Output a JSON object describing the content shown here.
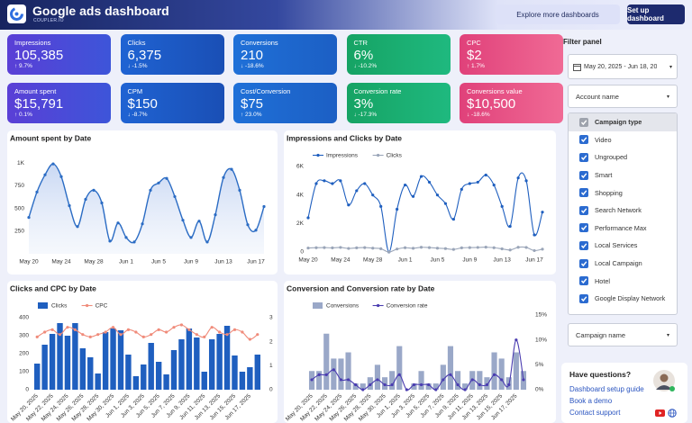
{
  "header": {
    "title": "Google ads dashboard",
    "subtitle": "COUPLER.IO",
    "buttons": [
      "Explore more dashboards",
      "Set up dashboard"
    ]
  },
  "kpis": [
    {
      "label": "Impressions",
      "value": "105,385",
      "delta": "↑ 9.7%"
    },
    {
      "label": "Clicks",
      "value": "6,375",
      "delta": "↓ -1.5%"
    },
    {
      "label": "Conversions",
      "value": "210",
      "delta": "↓ -18.6%"
    },
    {
      "label": "CTR",
      "value": "6%",
      "delta": "↓ -10.2%"
    },
    {
      "label": "CPC",
      "value": "$2",
      "delta": "↑ 1.7%"
    },
    {
      "label": "Amount spent",
      "value": "$15,791",
      "delta": "↑ 0.1%"
    },
    {
      "label": "CPM",
      "value": "$150",
      "delta": "↓ -8.7%"
    },
    {
      "label": "Cost/Conversion",
      "value": "$75",
      "delta": "↑ 23.0%"
    },
    {
      "label": "Conversion rate",
      "value": "3%",
      "delta": "↓ -17.3%"
    },
    {
      "label": "Conversions value",
      "value": "$10,500",
      "delta": "↓ -18.6%"
    }
  ],
  "chart_data": [
    {
      "type": "area",
      "title": "Amount spent by Date",
      "categories": [
        "May 20",
        null,
        null,
        null,
        "May 24",
        null,
        null,
        null,
        "May 28",
        null,
        null,
        null,
        "Jun 1",
        null,
        null,
        null,
        "Jun 5",
        null,
        null,
        null,
        "Jun 9",
        null,
        null,
        null,
        "Jun 13",
        null,
        null,
        null,
        "Jun 17",
        null
      ],
      "values": [
        400,
        680,
        870,
        990,
        850,
        530,
        300,
        600,
        700,
        560,
        140,
        340,
        180,
        130,
        330,
        700,
        780,
        830,
        630,
        370,
        180,
        360,
        130,
        430,
        840,
        930,
        700,
        320,
        260,
        520
      ],
      "color": "#2b6cc4",
      "ylim": [
        0,
        1100
      ],
      "yticks": [
        250,
        500,
        750,
        {
          "value": 1000,
          "label": "1K"
        }
      ]
    },
    {
      "type": "line",
      "title": "Impressions and Clicks by Date",
      "categories": [
        "May 20",
        null,
        null,
        null,
        "May 24",
        null,
        null,
        null,
        "May 28",
        null,
        null,
        null,
        "Jun 1",
        null,
        null,
        null,
        "Jun 5",
        null,
        null,
        null,
        "Jun 9",
        null,
        null,
        null,
        "Jun 13",
        null,
        null,
        null,
        "Jun 17",
        null
      ],
      "series": [
        {
          "name": "Impressions",
          "color": "#1f5fbf",
          "values": [
            2400,
            4800,
            5000,
            4800,
            5000,
            3300,
            4300,
            4800,
            4000,
            3200,
            0,
            3000,
            4700,
            3900,
            5300,
            4900,
            4000,
            3400,
            2300,
            4400,
            4800,
            4900,
            5400,
            4700,
            3200,
            1800,
            5200,
            5000,
            1200,
            2800
          ]
        },
        {
          "name": "Clicks",
          "color": "#9aa5b8",
          "values": [
            280,
            300,
            310,
            290,
            320,
            250,
            290,
            310,
            270,
            230,
            0,
            210,
            300,
            260,
            330,
            310,
            270,
            240,
            180,
            290,
            310,
            320,
            340,
            300,
            220,
            140,
            330,
            320,
            100,
            200
          ]
        }
      ],
      "ylim": [
        0,
        6000
      ],
      "yticks": [
        0,
        {
          "value": 2000,
          "label": "2K"
        },
        {
          "value": 4000,
          "label": "4K"
        },
        {
          "value": 6000,
          "label": "6K"
        }
      ]
    },
    {
      "type": "combo",
      "title": "Clicks and CPC by Date",
      "categories": [
        "May 20, 2025",
        null,
        "May 22, 2025",
        null,
        "May 24, 2025",
        null,
        "May 26, 2025",
        null,
        "May 28, 2025",
        null,
        "May 30, 2025",
        null,
        "Jun 1, 2025",
        null,
        "Jun 3, 2025",
        null,
        "Jun 5, 2025",
        null,
        "Jun 7, 2025",
        null,
        "Jun 9, 2025",
        null,
        "Jun 11, 2025",
        null,
        "Jun 13, 2025",
        null,
        "Jun 15, 2025",
        null,
        "Jun 17, 2025",
        null
      ],
      "series": [
        {
          "name": "Clicks",
          "type": "bar",
          "color": "#1f5fbf",
          "values": [
            145,
            250,
            310,
            370,
            300,
            370,
            230,
            180,
            90,
            320,
            340,
            330,
            195,
            75,
            140,
            260,
            155,
            85,
            220,
            280,
            340,
            290,
            100,
            280,
            310,
            355,
            190,
            100,
            125,
            195
          ]
        },
        {
          "name": "CPC",
          "type": "line",
          "axis": "y2",
          "color": "#f08b7a",
          "values": [
            2.2,
            2.4,
            2.5,
            2.3,
            2.6,
            2.5,
            2.3,
            2.2,
            2.3,
            2.4,
            2.6,
            2.3,
            2.5,
            2.4,
            2.2,
            2.3,
            2.5,
            2.4,
            2.6,
            2.7,
            2.5,
            2.3,
            2.2,
            2.6,
            2.4,
            2.3,
            2.5,
            2.4,
            2.1,
            2.3
          ]
        }
      ],
      "ylim": [
        0,
        400
      ],
      "yticks": [
        0,
        100,
        200,
        300,
        400
      ],
      "y2lim": [
        0,
        3
      ],
      "y2ticks": [
        0,
        1,
        2,
        3
      ]
    },
    {
      "type": "combo",
      "title": "Conversion and Conversion rate by Date",
      "categories": [
        "May 20, 2025",
        null,
        "May 22, 2025",
        null,
        "May 24, 2025",
        null,
        "May 26, 2025",
        null,
        "May 28, 2025",
        null,
        "May 30, 2025",
        null,
        "Jun 1, 2025",
        null,
        "Jun 3, 2025",
        null,
        "Jun 5, 2025",
        null,
        "Jun 7, 2025",
        null,
        "Jun 9, 2025",
        null,
        "Jun 11, 2025",
        null,
        "Jun 13, 2025",
        null,
        "Jun 15, 2025",
        null,
        "Jun 17, 2025",
        null
      ],
      "series": [
        {
          "name": "Conversions",
          "type": "bar",
          "color": "#9aa8c8",
          "values": [
            3,
            3,
            9,
            5,
            5,
            6,
            1,
            1,
            2,
            4,
            2,
            3,
            7,
            0,
            1,
            3,
            1,
            1,
            4,
            7,
            3,
            1,
            3,
            3,
            2,
            6,
            5,
            2,
            6,
            3
          ]
        },
        {
          "name": "Conversion rate",
          "type": "line",
          "axis": "y2",
          "color": "#4a3cb0",
          "values": [
            2,
            3,
            3,
            4,
            2,
            2,
            1,
            0,
            1,
            2,
            1,
            1,
            3,
            0,
            1,
            1,
            1,
            0,
            2,
            3,
            1,
            0,
            2,
            1,
            1,
            3,
            2,
            1,
            10,
            2
          ]
        }
      ],
      "ylim": [
        0,
        12
      ],
      "y2lim": [
        0,
        15
      ],
      "y2ticks": [
        {
          "value": 0,
          "label": "0%"
        },
        {
          "value": 5,
          "label": "5%"
        },
        {
          "value": 10,
          "label": "10%"
        },
        {
          "value": 15,
          "label": "15%"
        }
      ]
    }
  ],
  "filter_panel": {
    "title": "Filter panel",
    "date_range": "May 20, 2025 - Jun 18, 20",
    "account": "Account name",
    "campaign_type": {
      "header": "Campaign type",
      "options": [
        "Video",
        "Ungrouped",
        "Smart",
        "Shopping",
        "Search Network",
        "Performance Max",
        "Local Services",
        "Local Campaign",
        "Hotel",
        "Google Display Network"
      ]
    },
    "campaign_name": "Campaign name"
  },
  "help": {
    "title": "Have questions?",
    "links": [
      "Dashboard setup guide",
      "Book a demo",
      "Contact support"
    ]
  }
}
